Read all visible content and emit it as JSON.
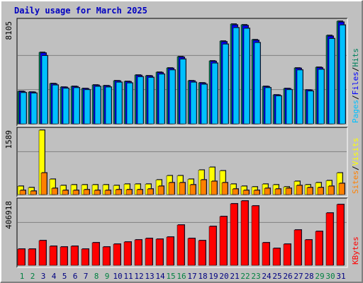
{
  "chart_data": {
    "type": "bar",
    "title": "Daily usage for March 2025",
    "separator": "/",
    "categories": [
      "1",
      "2",
      "3",
      "4",
      "5",
      "6",
      "7",
      "8",
      "9",
      "10",
      "11",
      "12",
      "13",
      "14",
      "15",
      "16",
      "17",
      "18",
      "19",
      "20",
      "21",
      "22",
      "23",
      "24",
      "25",
      "26",
      "27",
      "28",
      "29",
      "30",
      "31"
    ],
    "label_colors": [
      "#008040",
      "#008040",
      "#000080",
      "#000080",
      "#000080",
      "#000080",
      "#000080",
      "#008040",
      "#008040",
      "#000080",
      "#000080",
      "#000080",
      "#000080",
      "#000080",
      "#008040",
      "#008040",
      "#000080",
      "#000080",
      "#000080",
      "#000080",
      "#000080",
      "#008040",
      "#008040",
      "#000080",
      "#000080",
      "#000080",
      "#000080",
      "#000080",
      "#008040",
      "#008040",
      "#000080"
    ],
    "panels": [
      {
        "ylim": [
          0,
          8105
        ],
        "series": [
          {
            "name": "Hits",
            "color": "#00805c",
            "values": [
              2571,
              2515,
              5646,
              3186,
              2907,
              2963,
              2795,
              3074,
              3018,
              3410,
              3354,
              3857,
              3801,
              4081,
              4416,
              5310,
              3410,
              3242,
              4975,
              6540,
              7881,
              7826,
              6652,
              2963,
              2292,
              2795,
              4416,
              2683,
              4472,
              6987,
              8105
            ]
          },
          {
            "name": "Files",
            "color": "#0000ff",
            "values": [
              2540,
              2490,
              5590,
              3150,
              2880,
              2930,
              2770,
              3040,
              2990,
              3380,
              3320,
              3820,
              3770,
              4040,
              4380,
              5260,
              3380,
              3210,
              4930,
              6480,
              7810,
              7760,
              6590,
              2930,
              2270,
              2770,
              4380,
              2660,
              4430,
              6920,
              8030
            ]
          },
          {
            "name": "Pages",
            "color": "#00c0ff",
            "values": [
              2460,
              2420,
              5380,
              3060,
              2800,
              2850,
              2690,
              2950,
              2900,
              3280,
              3220,
              3710,
              3660,
              3920,
              4250,
              5110,
              3280,
              3120,
              4790,
              6290,
              7590,
              7540,
              6410,
              2850,
              2200,
              2690,
              4250,
              2580,
              4300,
              6730,
              7800
            ]
          }
        ]
      },
      {
        "ylim": [
          0,
          1589
        ],
        "series": [
          {
            "name": "Visits",
            "color": "#ffff00",
            "values": [
              207,
              173,
              1589,
              380,
              225,
              242,
              242,
              242,
              242,
              225,
              259,
              259,
              259,
              363,
              466,
              466,
              380,
              605,
              674,
              587,
              259,
              207,
              190,
              259,
              242,
              190,
              328,
              242,
              294,
              345,
              535
            ]
          },
          {
            "name": "Sites",
            "color": "#ff8000",
            "values": [
              104,
              86,
              535,
              155,
              104,
              104,
              121,
              104,
              104,
              121,
              121,
              121,
              138,
              207,
              294,
              294,
              242,
              363,
              328,
              294,
              138,
              104,
              104,
              155,
              138,
              155,
              225,
              173,
              173,
              207,
              276
            ]
          }
        ]
      },
      {
        "ylim": [
          0,
          406918
        ],
        "series": [
          {
            "name": "KBytes",
            "color": "#ff0000",
            "values": [
              102850,
              102850,
              156510,
              120730,
              116260,
              120730,
              102850,
              143090,
              116260,
              134150,
              147560,
              160980,
              169920,
              165450,
              178870,
              254880,
              169920,
              156510,
              245940,
              308540,
              389030,
              406918,
              375620,
              143090,
              107320,
              134150,
              223580,
              160980,
              214640,
              330900,
              384560
            ]
          }
        ]
      }
    ]
  }
}
